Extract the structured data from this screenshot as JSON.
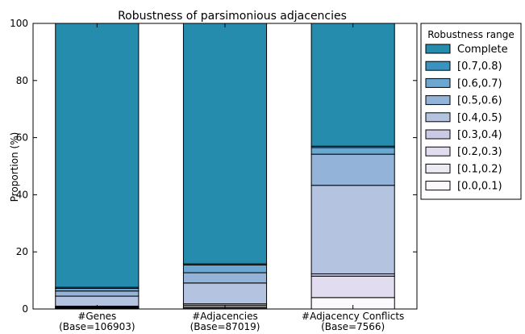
{
  "chart_data": {
    "type": "bar",
    "stacked": true,
    "title": "Robustness of parsimonious adjacencies",
    "xlabel": "",
    "ylabel": "Proportion (%)",
    "ylim": [
      0,
      100
    ],
    "yticks": [
      "0",
      "20",
      "40",
      "60",
      "80",
      "100"
    ],
    "grid": false,
    "legend_placement": "outside-right",
    "legend_title": "Robustness range",
    "categories": [
      [
        "#Genes",
        "(Base=106903)"
      ],
      [
        "#Adjacencies",
        "(Base=87019)"
      ],
      [
        "#Adjacency Conflicts",
        "(Base=7566)"
      ]
    ],
    "series": [
      {
        "name": "[0.0,0.1)",
        "color": "#fcf9fd",
        "values": [
          0.3,
          0.3,
          4.0
        ]
      },
      {
        "name": "[0.1,0.2)",
        "color": "#eeeaf4",
        "values": [
          0.2,
          0.4,
          0.0
        ]
      },
      {
        "name": "[0.2,0.3)",
        "color": "#e1dcef",
        "values": [
          0.3,
          0.6,
          7.5
        ]
      },
      {
        "name": "[0.3,0.4)",
        "color": "#cbcae5",
        "values": [
          0.2,
          0.5,
          0.8
        ]
      },
      {
        "name": "[0.4,0.5)",
        "color": "#b4c3e0",
        "values": [
          3.5,
          7.3,
          31.0
        ]
      },
      {
        "name": "[0.5,0.6)",
        "color": "#93b4d8",
        "values": [
          1.8,
          3.6,
          10.9
        ]
      },
      {
        "name": "[0.6,0.7)",
        "color": "#6ba7d0",
        "values": [
          0.9,
          2.7,
          2.3
        ]
      },
      {
        "name": "[0.7,0.8)",
        "color": "#3993c2",
        "values": [
          0.4,
          0.4,
          0.5
        ]
      },
      {
        "name": "Complete",
        "color": "#258cae",
        "values": [
          92.4,
          84.2,
          43.0
        ]
      }
    ],
    "legend_order": [
      "Complete",
      "[0.7,0.8)",
      "[0.6,0.7)",
      "[0.5,0.6)",
      "[0.4,0.5)",
      "[0.3,0.4)",
      "[0.2,0.3)",
      "[0.1,0.2)",
      "[0.0,0.1)"
    ]
  }
}
